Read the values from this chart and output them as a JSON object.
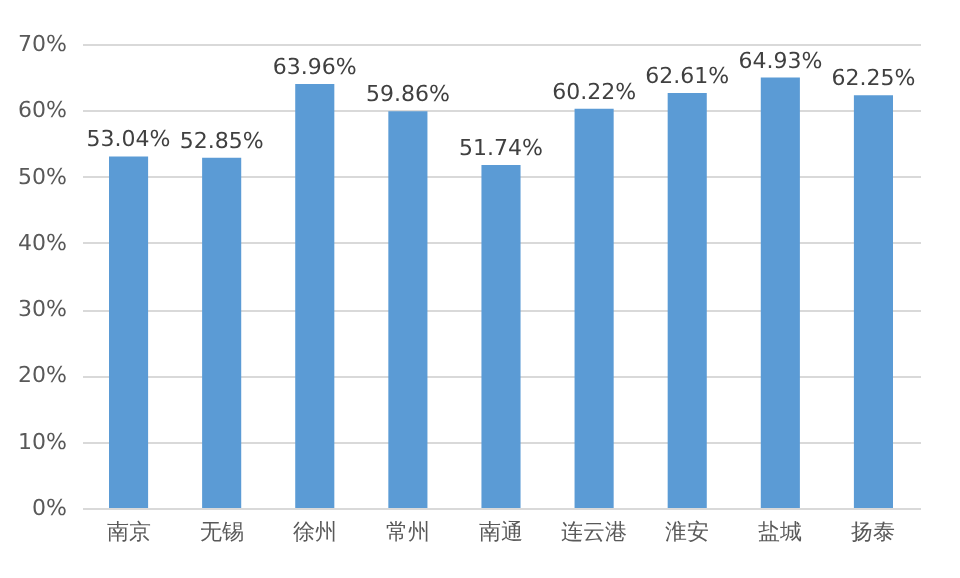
{
  "chart_data": {
    "type": "bar",
    "categories": [
      "南京",
      "无锡",
      "徐州",
      "常州",
      "南通",
      "连云港",
      "淮安",
      "盐城",
      "扬泰"
    ],
    "values": [
      53.04,
      52.85,
      63.96,
      59.86,
      51.74,
      60.22,
      62.61,
      64.93,
      62.25
    ],
    "value_labels": [
      "53.04%",
      "52.85%",
      "63.96%",
      "59.86%",
      "51.74%",
      "60.22%",
      "62.61%",
      "64.93%",
      "62.25%"
    ],
    "color": "#5b9bd5",
    "ylim": [
      0,
      70
    ],
    "yticks": [
      {
        "value": 0,
        "label": "0%"
      },
      {
        "value": 10,
        "label": "10%"
      },
      {
        "value": 20,
        "label": "20%"
      },
      {
        "value": 30,
        "label": "30%"
      },
      {
        "value": 40,
        "label": "40%"
      },
      {
        "value": 50,
        "label": "50%"
      },
      {
        "value": 60,
        "label": "60%"
      },
      {
        "value": 70,
        "label": "70%"
      }
    ],
    "grid": "y"
  }
}
